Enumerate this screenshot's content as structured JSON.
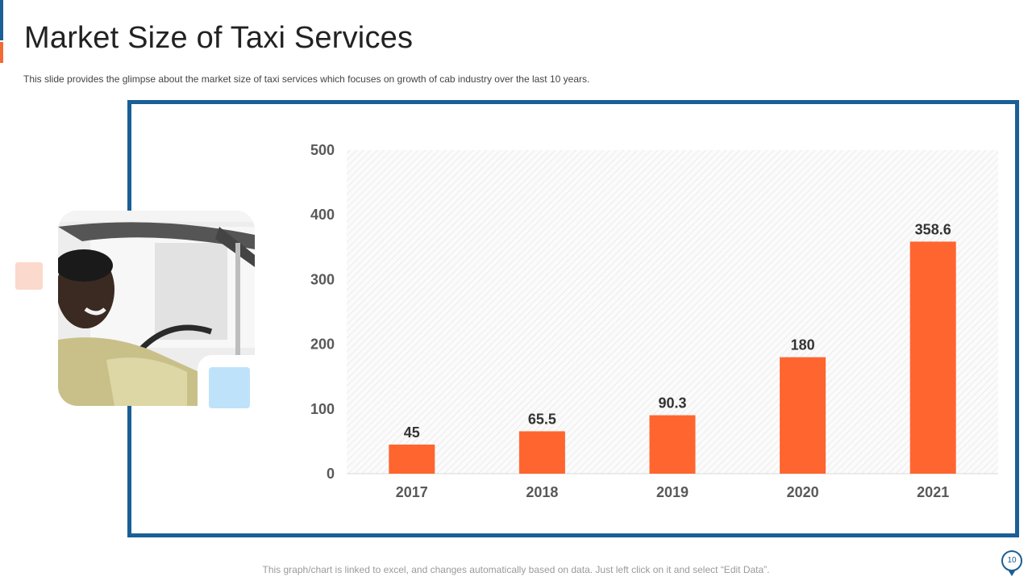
{
  "slide": {
    "title": "Market Size of Taxi Services",
    "subtitle": "This slide provides  the glimpse about the market size of taxi services  which focuses on growth  of cab industry over  the last 10 years.",
    "footer_note": "This graph/chart is linked to excel, and changes automatically based on data. Just left click on it and select “Edit Data”.",
    "page_number": "10"
  },
  "colors": {
    "primary_blue": "#1a5f96",
    "bar_orange": "#ff652f",
    "accent_orange": "#f26b35",
    "light_peach": "#fbd9cc",
    "light_blue": "#bfe2fb"
  },
  "image": {
    "icon": "photo-taxi-driver-icon"
  },
  "chart_data": {
    "type": "bar",
    "title": "",
    "xlabel": "",
    "ylabel": "",
    "categories": [
      "2017",
      "2018",
      "2019",
      "2020",
      "2021"
    ],
    "values": [
      45,
      65.5,
      90.3,
      180,
      358.6
    ],
    "value_labels": [
      "45",
      "65.5",
      "90.3",
      "180",
      "358.6"
    ],
    "ylim": [
      0,
      500
    ],
    "yticks": [
      0,
      100,
      200,
      300,
      400,
      500
    ],
    "grid": false,
    "legend": "none"
  }
}
